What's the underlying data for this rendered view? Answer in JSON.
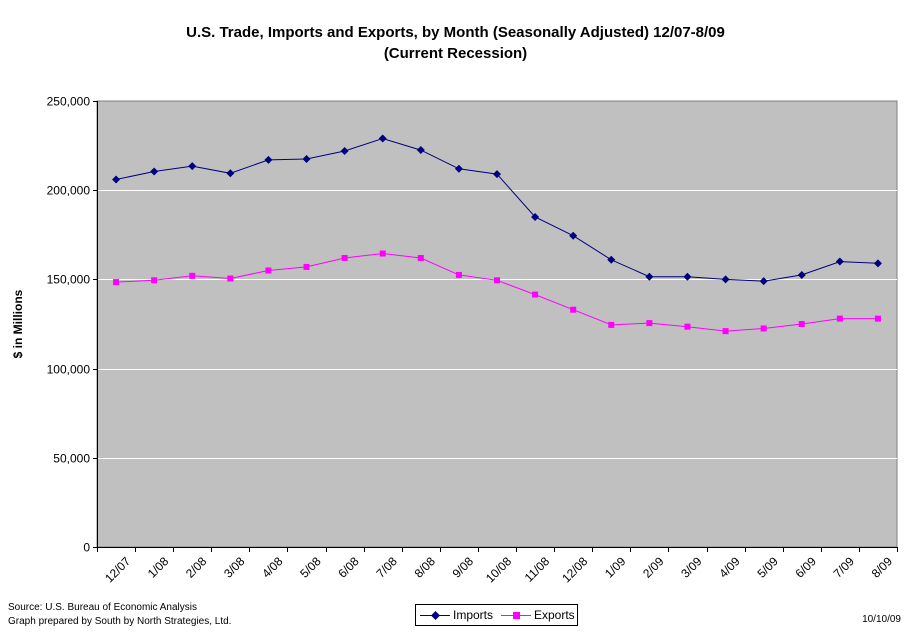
{
  "chart_data": {
    "type": "line",
    "title": "U.S. Trade, Imports and Exports, by Month (Seasonally Adjusted) 12/07-8/09",
    "subtitle": "(Current Recession)",
    "ylabel": "$ in Millions",
    "xlabel": "",
    "ylim": [
      0,
      250000
    ],
    "yticks": [
      0,
      50000,
      100000,
      150000,
      200000,
      250000
    ],
    "ytick_labels": [
      "0",
      "50,000",
      "100,000",
      "150,000",
      "200,000",
      "250,000"
    ],
    "categories": [
      "12/07",
      "1/08",
      "2/08",
      "3/08",
      "4/08",
      "5/08",
      "6/08",
      "7/08",
      "8/08",
      "9/08",
      "10/08",
      "11/08",
      "12/08",
      "1/09",
      "2/09",
      "3/09",
      "4/09",
      "5/09",
      "6/09",
      "7/09",
      "8/09"
    ],
    "series": [
      {
        "name": "Imports",
        "color": "#000080",
        "marker": "diamond",
        "values": [
          206000,
          210500,
          213500,
          209500,
          217000,
          217500,
          222000,
          229000,
          222500,
          212000,
          209000,
          185000,
          174500,
          161000,
          151500,
          151500,
          150000,
          149000,
          152500,
          160000,
          159000
        ]
      },
      {
        "name": "Exports",
        "color": "#ff00ff",
        "marker": "square",
        "values": [
          148500,
          149500,
          152000,
          150500,
          155000,
          157000,
          162000,
          164500,
          162000,
          152500,
          149500,
          141500,
          133000,
          124500,
          125500,
          123500,
          121000,
          122500,
          125000,
          128000,
          128000
        ]
      }
    ],
    "grid": true,
    "legend_position": "bottom-center",
    "plot_background": "#c0c0c0"
  },
  "footer": {
    "source": "Source: U.S. Bureau of Economic Analysis",
    "prepared": "Graph prepared by South by North Strategies, Ltd.",
    "date": "10/10/09"
  }
}
